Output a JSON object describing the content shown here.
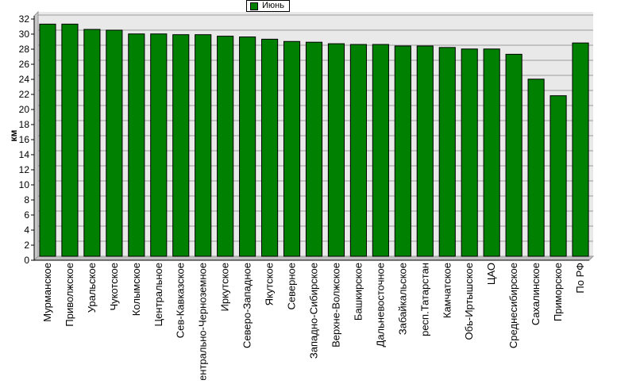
{
  "chart_data": {
    "type": "bar",
    "ylabel": "км",
    "ylim": [
      0,
      32
    ],
    "ytick_step": 2,
    "grid": true,
    "legend_position": "top-center",
    "series": [
      {
        "name": "Июнь",
        "color": "#008000",
        "values": [
          30.8,
          30.8,
          30.1,
          30.0,
          29.5,
          29.5,
          29.4,
          29.4,
          29.2,
          29.1,
          28.8,
          28.5,
          28.4,
          28.2,
          28.1,
          28.1,
          27.9,
          27.9,
          27.7,
          27.5,
          27.5,
          26.8,
          23.5,
          21.3,
          28.3
        ]
      }
    ],
    "categories": [
      "Мурманское",
      "Приволжское",
      "Уральское",
      "Чукотское",
      "Колымское",
      "Центральное",
      "Сев-Кавказское",
      "Центрально-Черноземное",
      "Иркутское",
      "Северо-Западное",
      "Якутское",
      "Северное",
      "Западно-Сибирское",
      "Верхне-Волжское",
      "Башкирское",
      "Дальневосточное",
      "Забайкальское",
      "респ.Татарстан",
      "Камчатское",
      "Обь-Иртышское",
      "ЦАО",
      "Среднесибирское",
      "Сахалинское",
      "Приморское",
      "По РФ"
    ]
  }
}
